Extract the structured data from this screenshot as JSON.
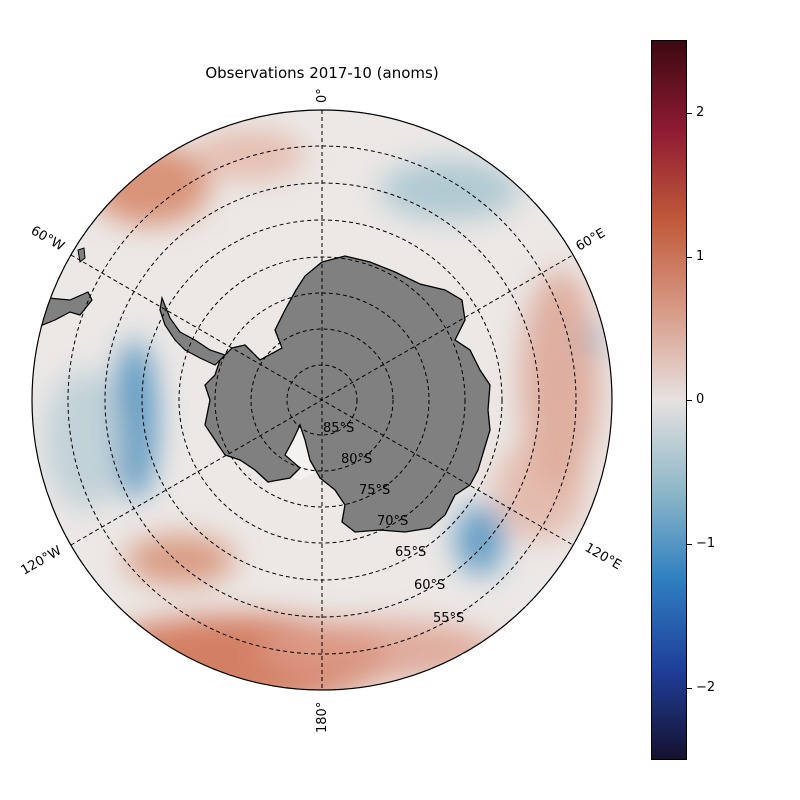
{
  "title": "Observations 2017-10 (anoms)",
  "map": {
    "projection": "south-polar-stereographic",
    "meridian_labels": [
      {
        "text": "0°",
        "lon": 0
      },
      {
        "text": "60°E",
        "lon": 60
      },
      {
        "text": "120°E",
        "lon": 120
      },
      {
        "text": "180°",
        "lon": 180
      },
      {
        "text": "120°W",
        "lon": -120
      },
      {
        "text": "60°W",
        "lon": -60
      }
    ],
    "parallel_labels": [
      "85°S",
      "80°S",
      "75°S",
      "70°S",
      "65°S",
      "60°S",
      "55°S"
    ],
    "land_color": "#808080",
    "sea_ice_color": "#f2f2f2"
  },
  "colorbar": {
    "colormap": "balance (diverging blue-white-red)",
    "range": [
      -2.5,
      2.5
    ],
    "ticks": [
      "2",
      "1",
      "0",
      "−1",
      "−2"
    ],
    "tick_values": [
      2,
      1,
      0,
      -1,
      -2
    ],
    "colors": [
      "#16112f",
      "#1f3f9a",
      "#2f7fc0",
      "#8fb8c8",
      "#e6e1e0",
      "#d79a85",
      "#c05a3a",
      "#8f1b33",
      "#3c0911"
    ]
  },
  "chart_data": {
    "type": "heatmap",
    "title": "Observations 2017-10 (anoms)",
    "colorbar_range": [
      -2.5,
      2.5
    ],
    "colorbar_ticks": [
      -2,
      -1,
      0,
      1,
      2
    ],
    "anomaly_regions": [
      {
        "region": "Pacific sector ~180°",
        "sign": "positive",
        "approx_value": 0.8
      },
      {
        "region": "Indian sector 60°E–120°E, north of 60°S",
        "sign": "positive",
        "approx_value": 0.4
      },
      {
        "region": "Atlantic sector near 20°E–40°E",
        "sign": "negative",
        "approx_value": -0.4
      },
      {
        "region": "Weddell / 60°W–100°W band",
        "sign": "negative",
        "approx_value": -1.1
      },
      {
        "region": "near 120°E–135°E off coast",
        "sign": "negative",
        "approx_value": -1.0
      },
      {
        "region": "60°W–0° outer ring",
        "sign": "positive",
        "approx_value": 0.6
      }
    ]
  }
}
